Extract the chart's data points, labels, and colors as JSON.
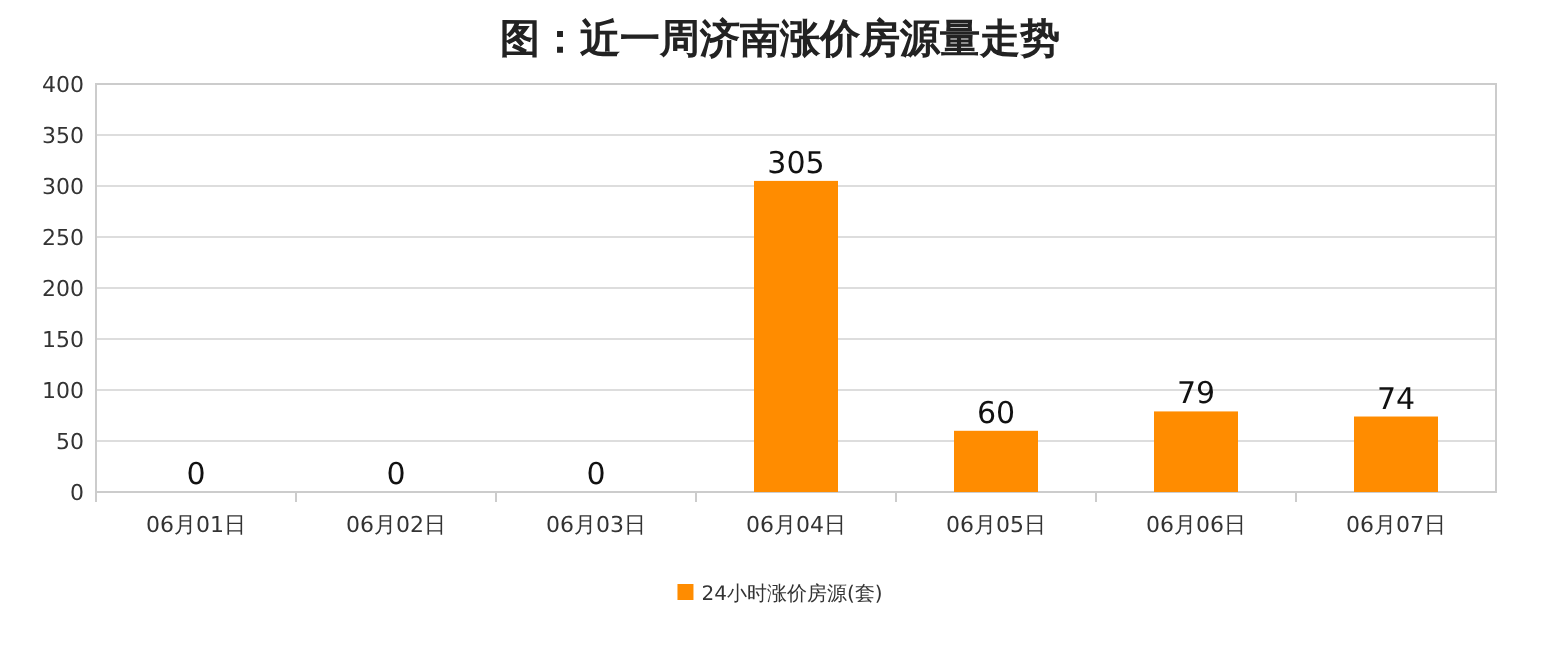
{
  "chart_data": {
    "type": "bar",
    "title": "图：近一周济南涨价房源量走势",
    "categories": [
      "06月01日",
      "06月02日",
      "06月03日",
      "06月04日",
      "06月05日",
      "06月06日",
      "06月07日"
    ],
    "series": [
      {
        "name": "24小时涨价房源(套)",
        "color": "#ff8c00",
        "values": [
          0,
          0,
          0,
          305,
          60,
          79,
          74
        ]
      }
    ],
    "ylim": [
      0,
      400
    ],
    "yticks": [
      0,
      50,
      100,
      150,
      200,
      250,
      300,
      350,
      400
    ],
    "grid": "y",
    "legend": "bottom",
    "data_labels": true
  }
}
